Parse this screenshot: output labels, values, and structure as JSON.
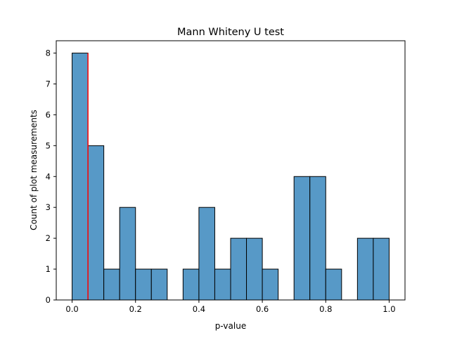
{
  "chart_data": {
    "type": "bar",
    "title": "Mann Whiteny U test",
    "xlabel": "p-value",
    "ylabel": "Count of plot measurements",
    "xlim": [
      -0.05,
      1.05
    ],
    "ylim": [
      0,
      8.4
    ],
    "xticks": [
      0.0,
      0.2,
      0.4,
      0.6,
      0.8,
      1.0
    ],
    "xtick_labels": [
      "0.0",
      "0.2",
      "0.4",
      "0.6",
      "0.8",
      "1.0"
    ],
    "yticks": [
      0,
      1,
      2,
      3,
      4,
      5,
      6,
      7,
      8
    ],
    "ytick_labels": [
      "0",
      "1",
      "2",
      "3",
      "4",
      "5",
      "6",
      "7",
      "8"
    ],
    "bin_width": 0.05,
    "bins": [
      {
        "start": 0.0,
        "count": 8
      },
      {
        "start": 0.05,
        "count": 5
      },
      {
        "start": 0.1,
        "count": 1
      },
      {
        "start": 0.15,
        "count": 3
      },
      {
        "start": 0.2,
        "count": 1
      },
      {
        "start": 0.25,
        "count": 1
      },
      {
        "start": 0.3,
        "count": 0
      },
      {
        "start": 0.35,
        "count": 1
      },
      {
        "start": 0.4,
        "count": 3
      },
      {
        "start": 0.45,
        "count": 1
      },
      {
        "start": 0.5,
        "count": 2
      },
      {
        "start": 0.55,
        "count": 2
      },
      {
        "start": 0.6,
        "count": 1
      },
      {
        "start": 0.65,
        "count": 0
      },
      {
        "start": 0.7,
        "count": 4
      },
      {
        "start": 0.75,
        "count": 4
      },
      {
        "start": 0.8,
        "count": 1
      },
      {
        "start": 0.85,
        "count": 0
      },
      {
        "start": 0.9,
        "count": 2
      },
      {
        "start": 0.95,
        "count": 2
      }
    ],
    "threshold_line": {
      "x": 0.05,
      "y_max": 8,
      "color": "#ff0000"
    },
    "bar_color": "#5799c7",
    "edge_color": "#000000",
    "grid": false
  }
}
